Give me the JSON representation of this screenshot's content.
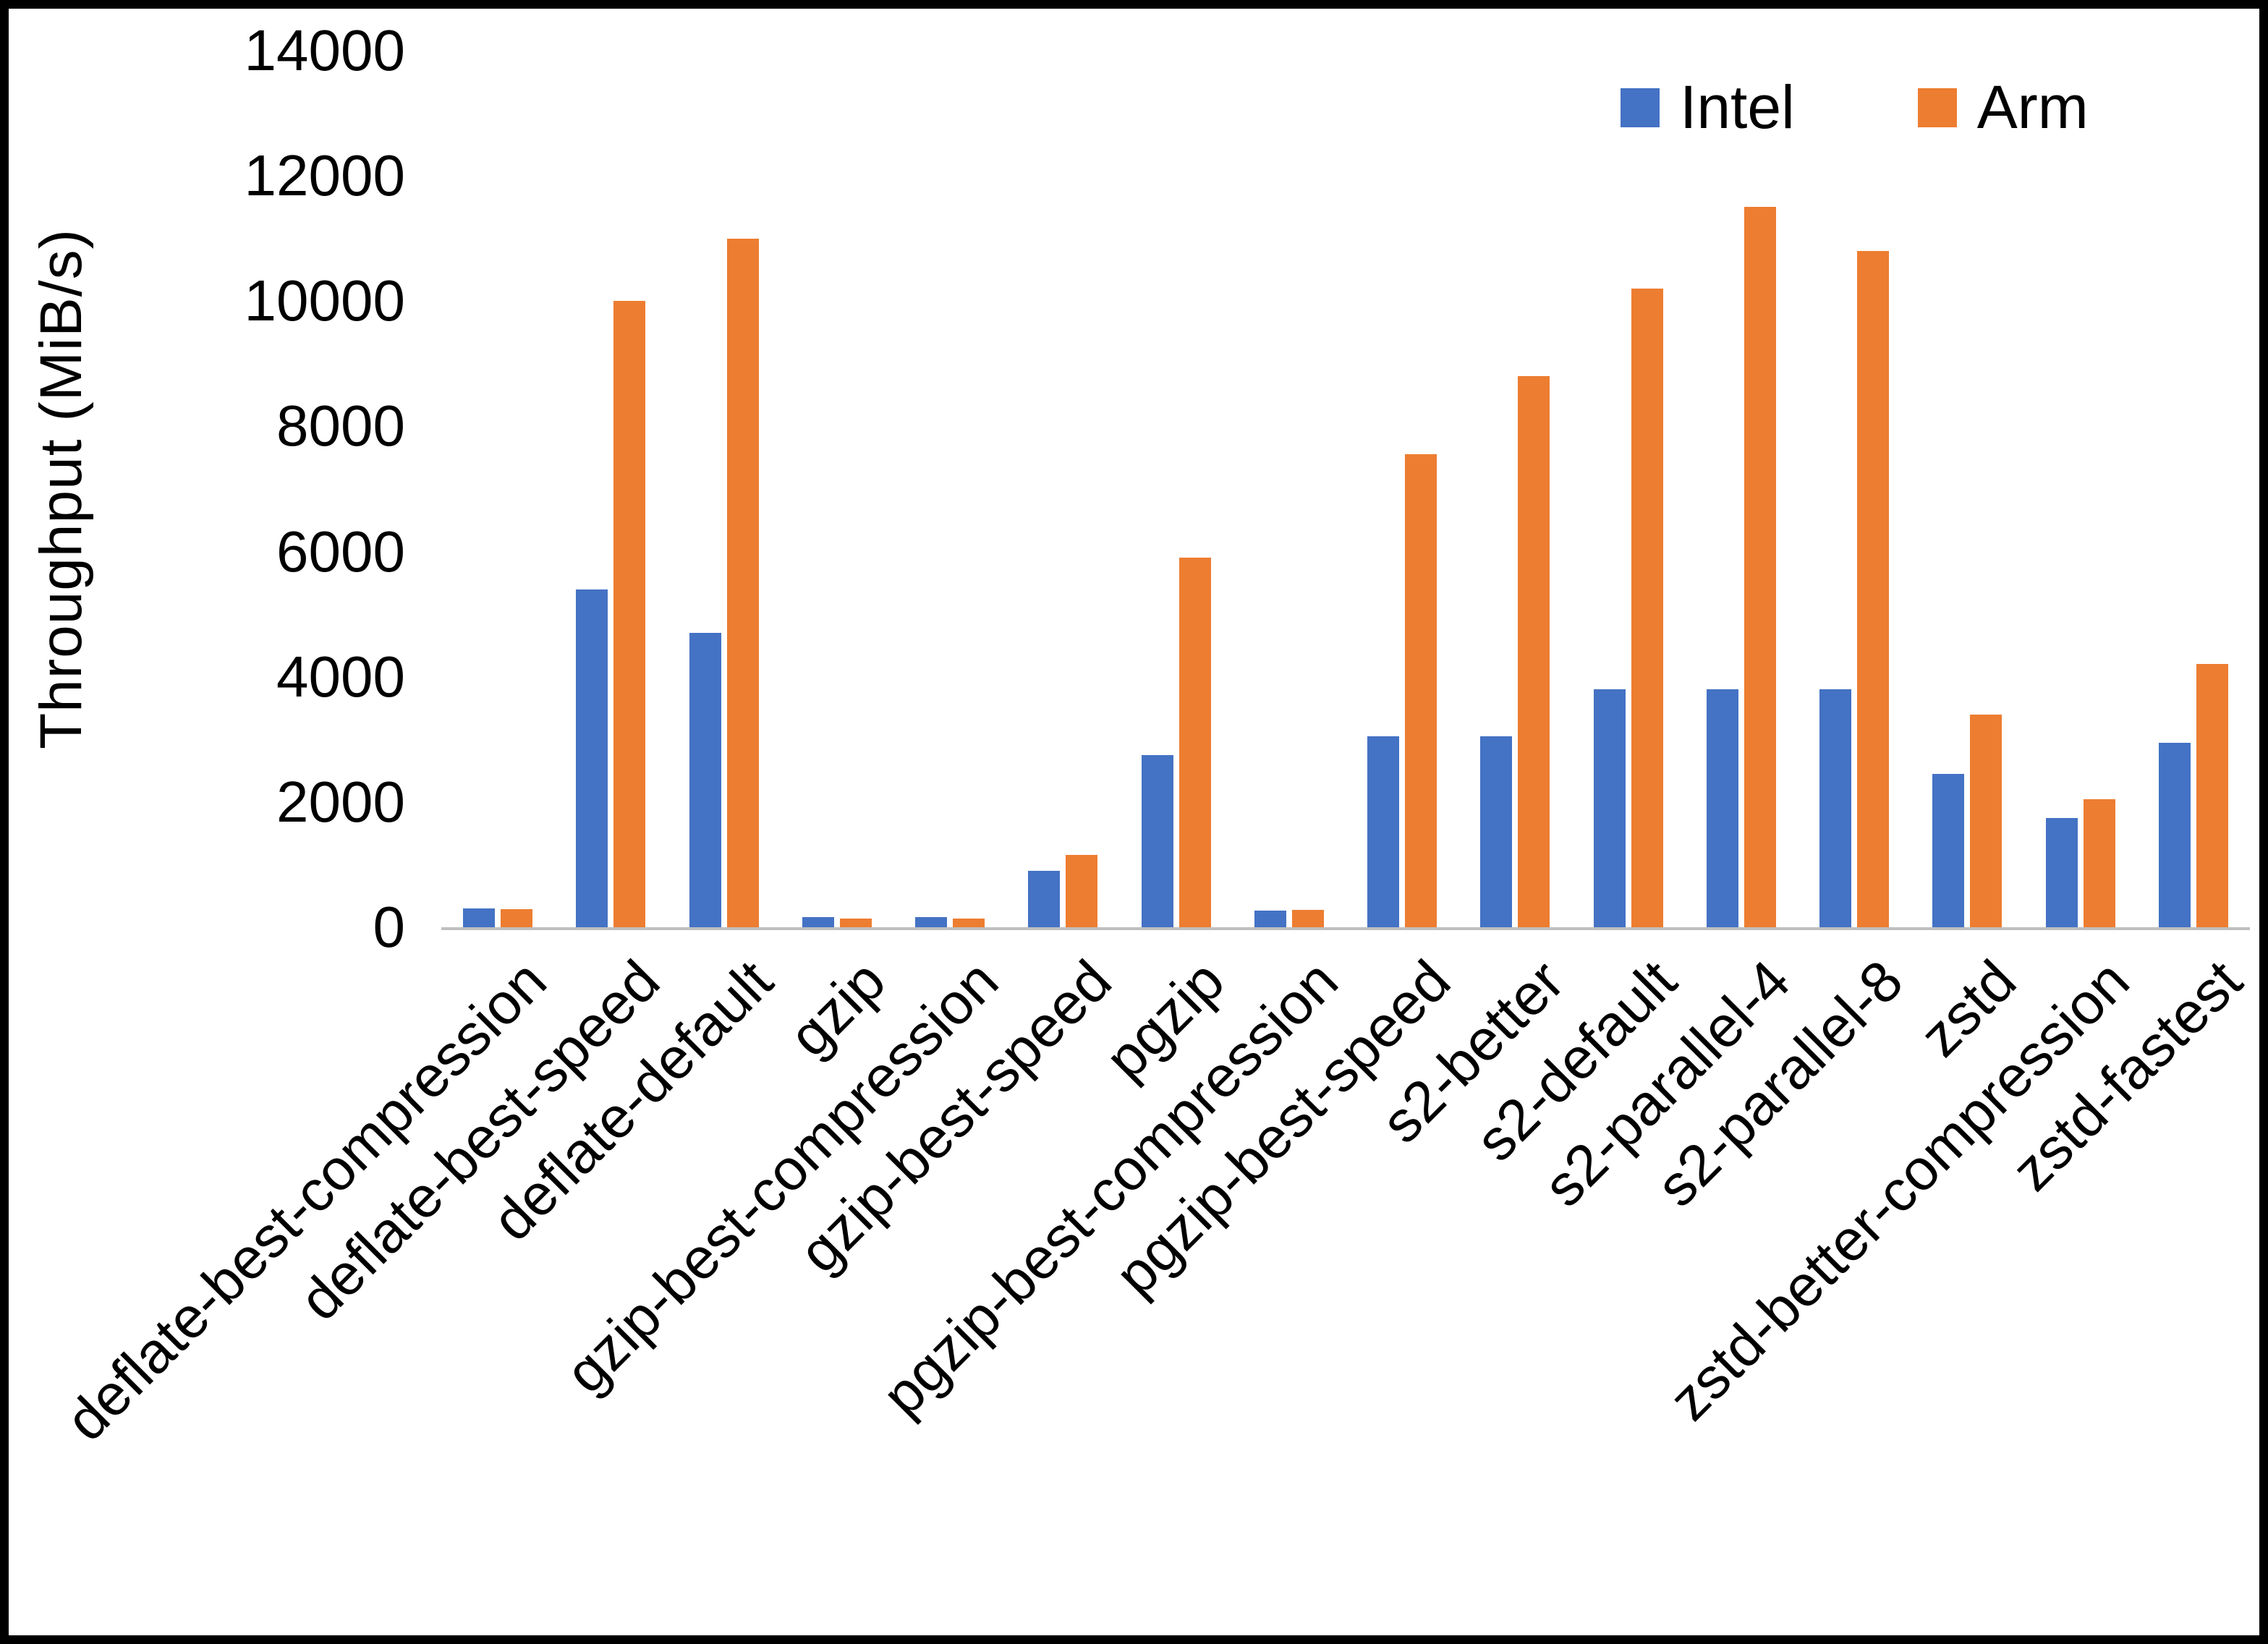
{
  "frame": {
    "background": "#ffffff",
    "border_color": "#000000"
  },
  "chart_data": {
    "type": "bar",
    "title": "",
    "xlabel": "",
    "ylabel": "Throughput (MiB/s)",
    "ylim": [
      0,
      14000
    ],
    "yticks": [
      0,
      2000,
      4000,
      6000,
      8000,
      10000,
      12000,
      14000
    ],
    "grid": false,
    "legend_position": "top-right",
    "axis_line_color": "#BFBFBF",
    "text_color": "#000000",
    "categories": [
      "deflate-best-compression",
      "deflate-best-speed",
      "deflate-default",
      "gzip",
      "gzip-best-compression",
      "gzip-best-speed",
      "pgzip",
      "pgzip-best-compression",
      "pgzip-best-speed",
      "s2-better",
      "s2-default",
      "s2-parallel-4",
      "s2-parallel-8",
      "zstd",
      "zstd-better-compression",
      "zstd-fastest"
    ],
    "series": [
      {
        "name": "Intel",
        "color": "#4472C4",
        "values": [
          300,
          5400,
          4700,
          160,
          160,
          900,
          2750,
          270,
          3050,
          3050,
          3800,
          3800,
          3800,
          2450,
          1750,
          2950
        ]
      },
      {
        "name": "Arm",
        "color": "#ED7D31",
        "values": [
          290,
          10000,
          11000,
          140,
          140,
          1150,
          5900,
          280,
          7550,
          8800,
          10200,
          11500,
          10800,
          3400,
          2050,
          4200
        ]
      }
    ]
  }
}
